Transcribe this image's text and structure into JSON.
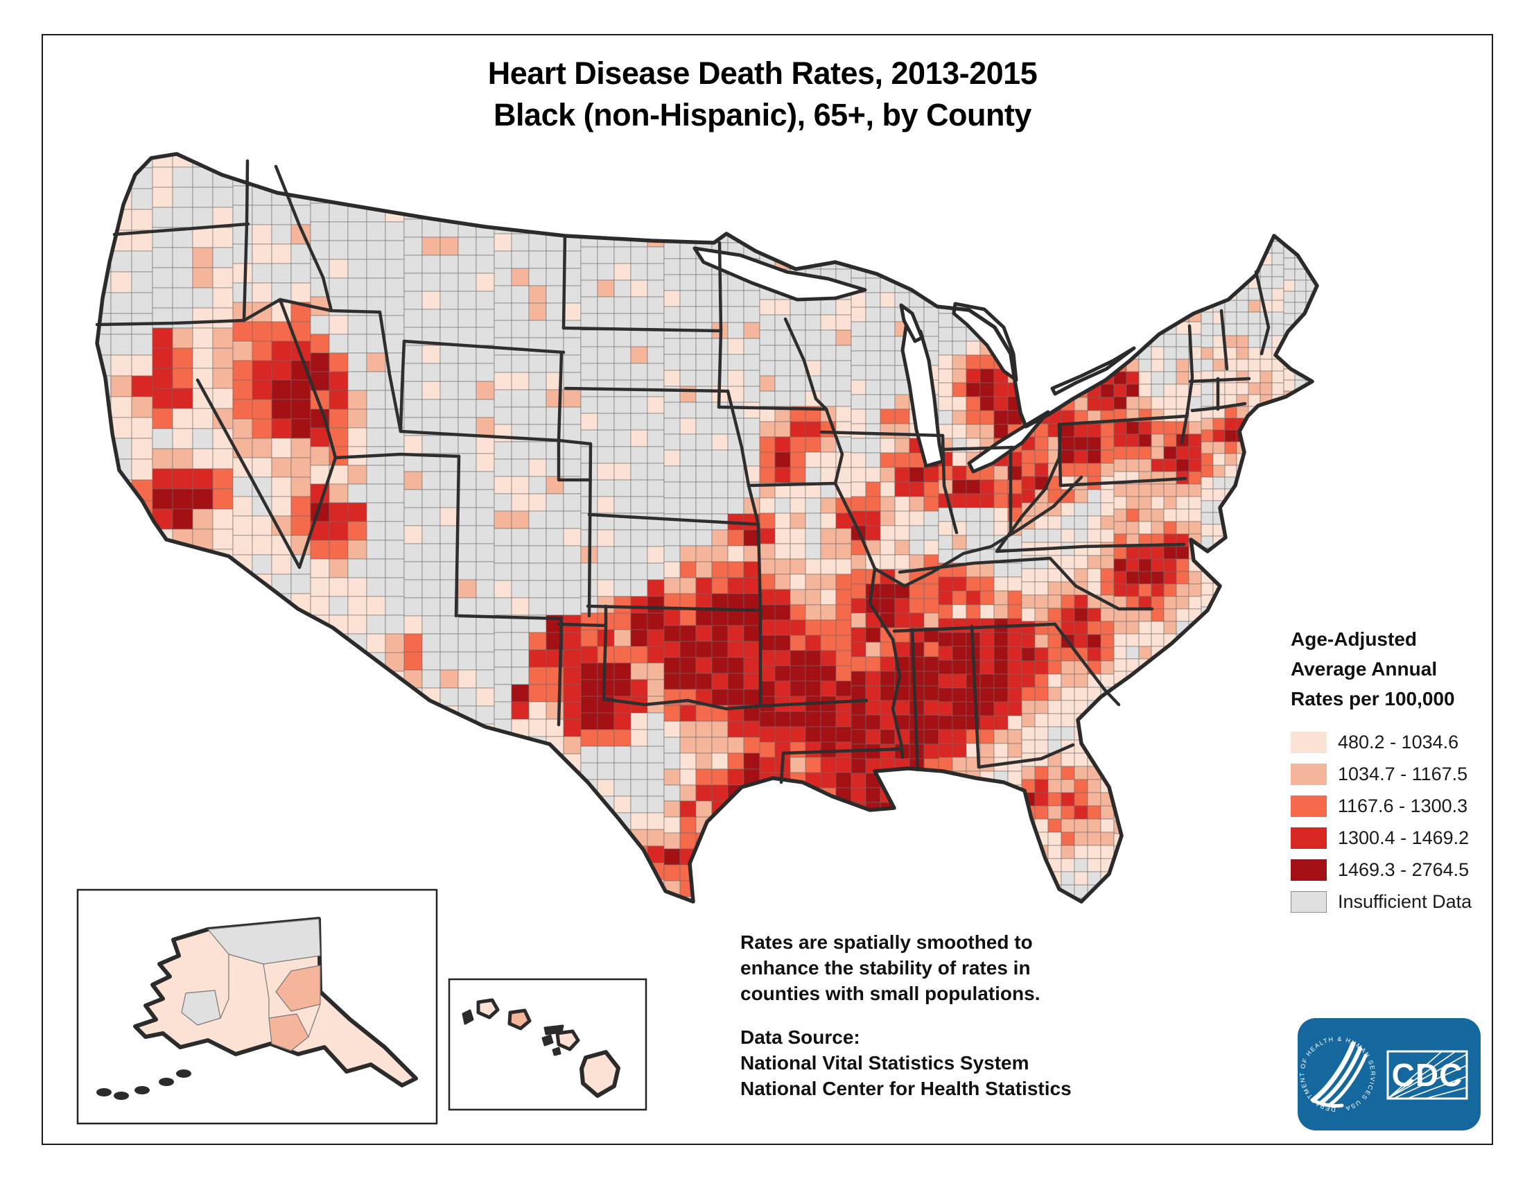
{
  "title": {
    "line1": "Heart Disease Death Rates, 2013-2015",
    "line2": "Black (non-Hispanic), 65+, by County"
  },
  "legend": {
    "title_lines": [
      "Age-Adjusted",
      "Average Annual",
      "Rates per 100,000"
    ],
    "items": [
      {
        "label": "480.2 - 1034.6",
        "color": "#FCE2D4"
      },
      {
        "label": "1034.7 - 1167.5",
        "color": "#F5B59A"
      },
      {
        "label": "1167.6 - 1300.3",
        "color": "#F56A4B"
      },
      {
        "label": "1300.4 - 1469.2",
        "color": "#D92823"
      },
      {
        "label": "1469.3 - 2764.5",
        "color": "#A31115"
      },
      {
        "label": "Insufficient Data",
        "color": "#E0E0E0"
      }
    ]
  },
  "notes": {
    "smoothing": "Rates are spatially smoothed to enhance the stability of rates in counties with small populations.",
    "source_label": "Data Source:",
    "sources": [
      "National Vital Statistics System",
      "National Center for Health Statistics"
    ]
  },
  "logo": {
    "acronym": "CDC",
    "ring_text": "DEPARTMENT OF HEALTH & HUMAN SERVICES USA",
    "brand_blue": "#15689E"
  },
  "chart_data": {
    "type": "choropleth_map",
    "geography": "United States counties (with Alaska and Hawaii insets)",
    "measure": "Age-Adjusted Average Annual Heart Disease Death Rates per 100,000",
    "population": "Black (non-Hispanic), ages 65+",
    "period": "2013-2015",
    "classes": [
      {
        "range": "480.2 - 1034.6",
        "color": "#FCE2D4"
      },
      {
        "range": "1034.7 - 1167.5",
        "color": "#F5B59A"
      },
      {
        "range": "1167.6 - 1300.3",
        "color": "#F56A4B"
      },
      {
        "range": "1300.4 - 1469.2",
        "color": "#D92823"
      },
      {
        "range": "1469.3 - 2764.5",
        "color": "#A31115"
      },
      {
        "range": "Insufficient Data",
        "color": "#E0E0E0"
      }
    ],
    "pattern_summary": "Highest rates concentrated in the Deep South, Mississippi valley, Oklahoma/Texas, Nevada and industrial Midwest/Northeast metros; insufficient data across much of the Plains and Mountain West."
  }
}
